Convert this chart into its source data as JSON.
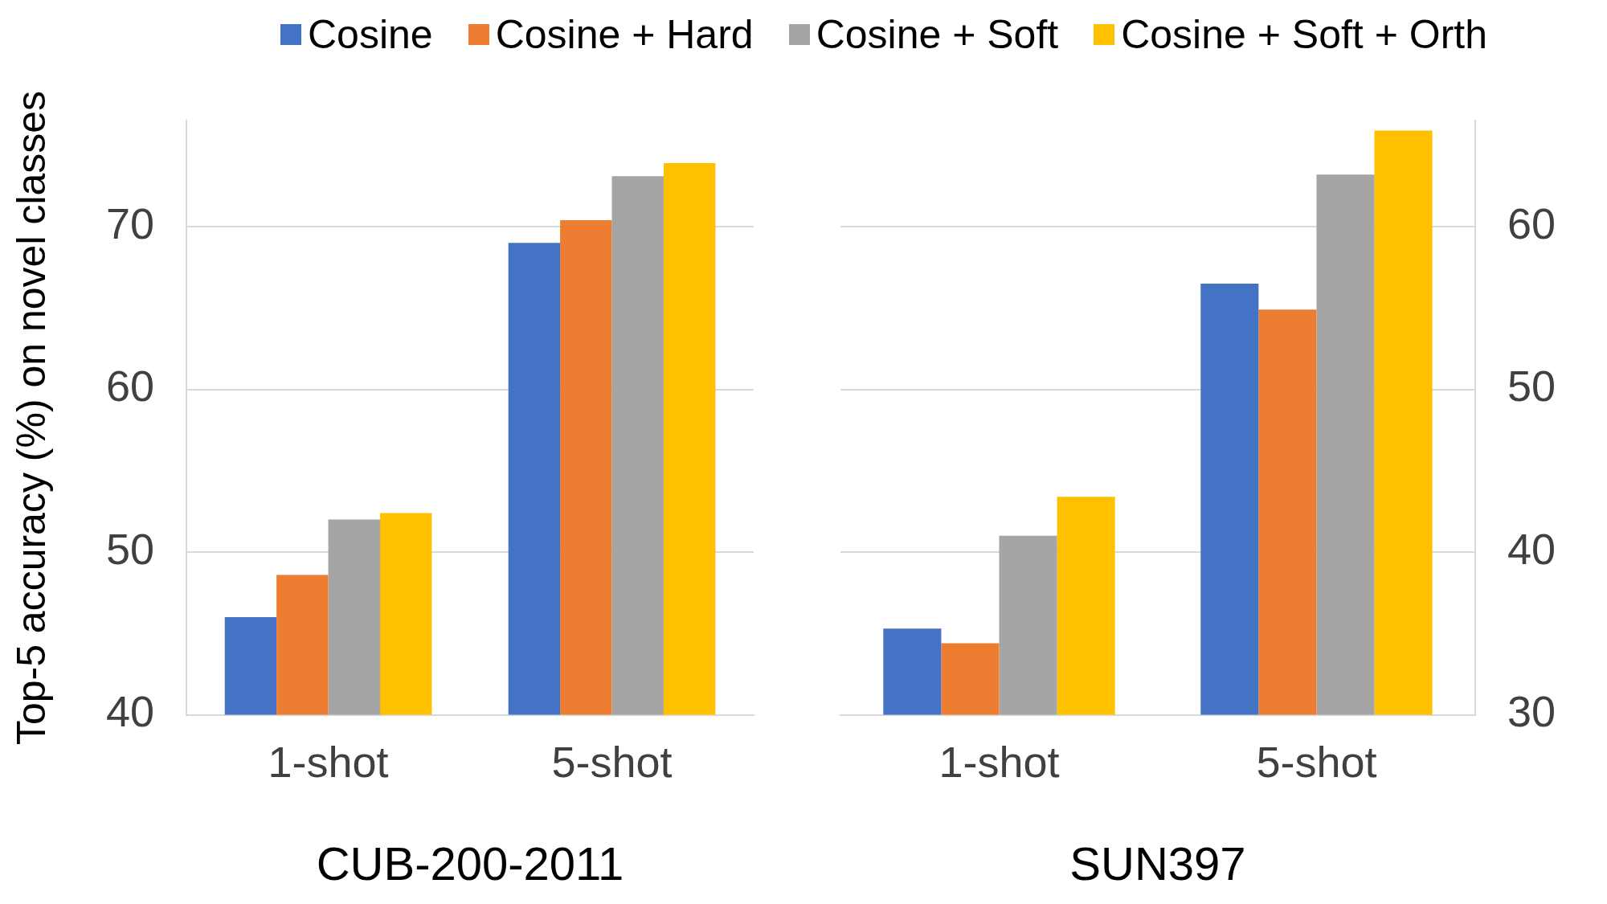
{
  "chart_data": [
    {
      "type": "bar",
      "xlabel": "CUB-200-2011",
      "ylabel": "Top-5 accuracy (%) on novel classes",
      "categories": [
        "1-shot",
        "5-shot"
      ],
      "series": [
        {
          "name": "Cosine",
          "color": "#4472c4",
          "values": [
            46.0,
            69.0
          ]
        },
        {
          "name": "Cosine + Hard",
          "color": "#ed7d31",
          "values": [
            48.6,
            70.4
          ]
        },
        {
          "name": "Cosine + Soft",
          "color": "#a5a5a5",
          "values": [
            52.0,
            73.1
          ]
        },
        {
          "name": "Cosine + Soft + Orth",
          "color": "#ffc000",
          "values": [
            52.4,
            73.9
          ]
        }
      ],
      "ylim": [
        40,
        76.5
      ],
      "yticks": [
        40,
        50,
        60,
        70
      ],
      "grid": "y",
      "legend": "top"
    },
    {
      "type": "bar",
      "xlabel": "SUN397",
      "categories": [
        "1-shot",
        "5-shot"
      ],
      "series": [
        {
          "color": "#4472c4",
          "values": [
            35.3,
            56.5
          ]
        },
        {
          "color": "#ed7d31",
          "values": [
            34.4,
            54.9
          ]
        },
        {
          "color": "#a5a5a5",
          "values": [
            41.0,
            63.2
          ]
        },
        {
          "color": "#ffc000",
          "values": [
            43.4,
            65.9
          ]
        }
      ],
      "ylim": [
        30,
        66.5
      ],
      "yticks": [
        30,
        40,
        50,
        60
      ],
      "grid": "y"
    }
  ]
}
